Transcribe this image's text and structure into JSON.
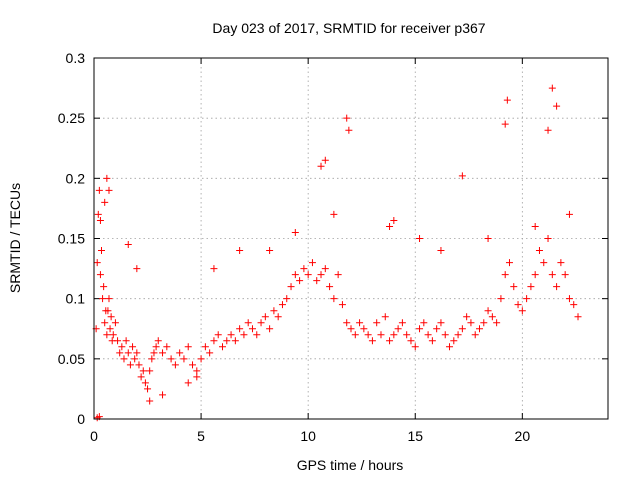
{
  "chart_data": {
    "type": "scatter",
    "title": "Day 023 of 2017, SRMTID for receiver p367",
    "xlabel": "GPS time / hours",
    "ylabel": "SRMTID / TECUs",
    "xlim": [
      0,
      24
    ],
    "ylim": [
      0,
      0.3
    ],
    "xticks": [
      0,
      5,
      10,
      15,
      20
    ],
    "xtick_labels": [
      "0",
      "5",
      "10",
      "15",
      "20"
    ],
    "yticks": [
      0,
      0.05,
      0.1,
      0.15,
      0.2,
      0.25,
      0.3
    ],
    "ytick_labels": [
      "0",
      "0.05",
      "0.1",
      "0.15",
      "0.2",
      "0.25",
      "0.3"
    ],
    "grid": true,
    "marker": "plus",
    "color": "#ff0000",
    "series": [
      {
        "name": "SRMTID",
        "x": [
          0.1,
          0.15,
          0.2,
          0.25,
          0.3,
          0.3,
          0.35,
          0.4,
          0.45,
          0.5,
          0.55,
          0.6,
          0.65,
          0.7,
          0.75,
          0.8,
          0.85,
          0.9,
          1.0,
          1.1,
          1.2,
          1.3,
          1.4,
          1.5,
          1.6,
          1.7,
          1.8,
          1.9,
          2.0,
          2.1,
          2.2,
          2.3,
          2.4,
          2.5,
          2.6,
          2.7,
          2.8,
          2.9,
          3.0,
          3.2,
          3.4,
          3.6,
          3.8,
          4.0,
          4.2,
          4.4,
          4.6,
          4.8,
          5.0,
          5.2,
          5.4,
          5.6,
          5.8,
          6.0,
          6.2,
          6.4,
          6.6,
          6.8,
          7.0,
          7.2,
          7.4,
          7.6,
          7.8,
          8.0,
          8.2,
          8.4,
          8.6,
          8.8,
          9.0,
          9.2,
          9.4,
          9.6,
          9.8,
          10.0,
          10.2,
          10.4,
          10.6,
          10.8,
          11.0,
          11.2,
          11.4,
          11.6,
          11.8,
          12.0,
          12.2,
          12.4,
          12.6,
          12.8,
          13.0,
          13.2,
          13.4,
          13.6,
          13.8,
          14.0,
          14.2,
          14.4,
          14.6,
          14.8,
          15.0,
          15.2,
          15.4,
          15.6,
          15.8,
          16.0,
          16.2,
          16.4,
          16.6,
          16.8,
          17.0,
          17.2,
          17.4,
          17.6,
          17.8,
          18.0,
          18.2,
          18.4,
          18.6,
          18.8,
          19.0,
          19.2,
          19.4,
          19.6,
          19.8,
          20.0,
          20.2,
          20.4,
          20.6,
          20.8,
          21.0,
          21.2,
          21.4,
          21.6,
          21.8,
          22.0,
          22.2,
          22.4,
          22.6,
          0.6,
          0.7,
          0.5,
          19.3,
          19.2,
          21.2,
          21.4,
          21.6,
          11.8,
          11.9,
          10.6,
          10.8,
          17.2,
          14.0,
          9.4,
          8.2,
          5.6,
          6.8,
          11.2,
          13.8,
          15.2,
          16.2,
          18.4,
          20.6,
          22.2,
          2.6,
          3.2,
          4.4,
          4.8,
          1.6,
          2.0,
          0.25,
          0.15
        ],
        "y": [
          0.075,
          0.13,
          0.17,
          0.19,
          0.165,
          0.12,
          0.14,
          0.1,
          0.11,
          0.08,
          0.09,
          0.07,
          0.09,
          0.1,
          0.075,
          0.085,
          0.065,
          0.07,
          0.08,
          0.065,
          0.055,
          0.06,
          0.05,
          0.065,
          0.055,
          0.045,
          0.06,
          0.05,
          0.055,
          0.045,
          0.035,
          0.04,
          0.03,
          0.025,
          0.04,
          0.05,
          0.055,
          0.06,
          0.065,
          0.055,
          0.06,
          0.05,
          0.045,
          0.055,
          0.05,
          0.06,
          0.045,
          0.04,
          0.05,
          0.06,
          0.055,
          0.065,
          0.07,
          0.06,
          0.065,
          0.07,
          0.065,
          0.075,
          0.07,
          0.08,
          0.075,
          0.07,
          0.08,
          0.085,
          0.075,
          0.09,
          0.085,
          0.095,
          0.1,
          0.11,
          0.12,
          0.115,
          0.125,
          0.12,
          0.13,
          0.115,
          0.12,
          0.125,
          0.11,
          0.1,
          0.12,
          0.095,
          0.08,
          0.075,
          0.07,
          0.08,
          0.075,
          0.07,
          0.065,
          0.08,
          0.07,
          0.085,
          0.065,
          0.07,
          0.075,
          0.08,
          0.07,
          0.065,
          0.06,
          0.075,
          0.08,
          0.07,
          0.065,
          0.075,
          0.08,
          0.07,
          0.06,
          0.065,
          0.07,
          0.075,
          0.085,
          0.08,
          0.07,
          0.075,
          0.08,
          0.09,
          0.085,
          0.08,
          0.1,
          0.12,
          0.13,
          0.11,
          0.095,
          0.09,
          0.1,
          0.11,
          0.12,
          0.14,
          0.13,
          0.15,
          0.12,
          0.11,
          0.13,
          0.12,
          0.1,
          0.095,
          0.085,
          0.2,
          0.19,
          0.18,
          0.265,
          0.245,
          0.24,
          0.275,
          0.26,
          0.25,
          0.24,
          0.21,
          0.215,
          0.202,
          0.165,
          0.155,
          0.14,
          0.125,
          0.14,
          0.17,
          0.16,
          0.15,
          0.14,
          0.15,
          0.16,
          0.17,
          0.015,
          0.02,
          0.03,
          0.035,
          0.145,
          0.125,
          0.002,
          0.001
        ]
      }
    ]
  }
}
